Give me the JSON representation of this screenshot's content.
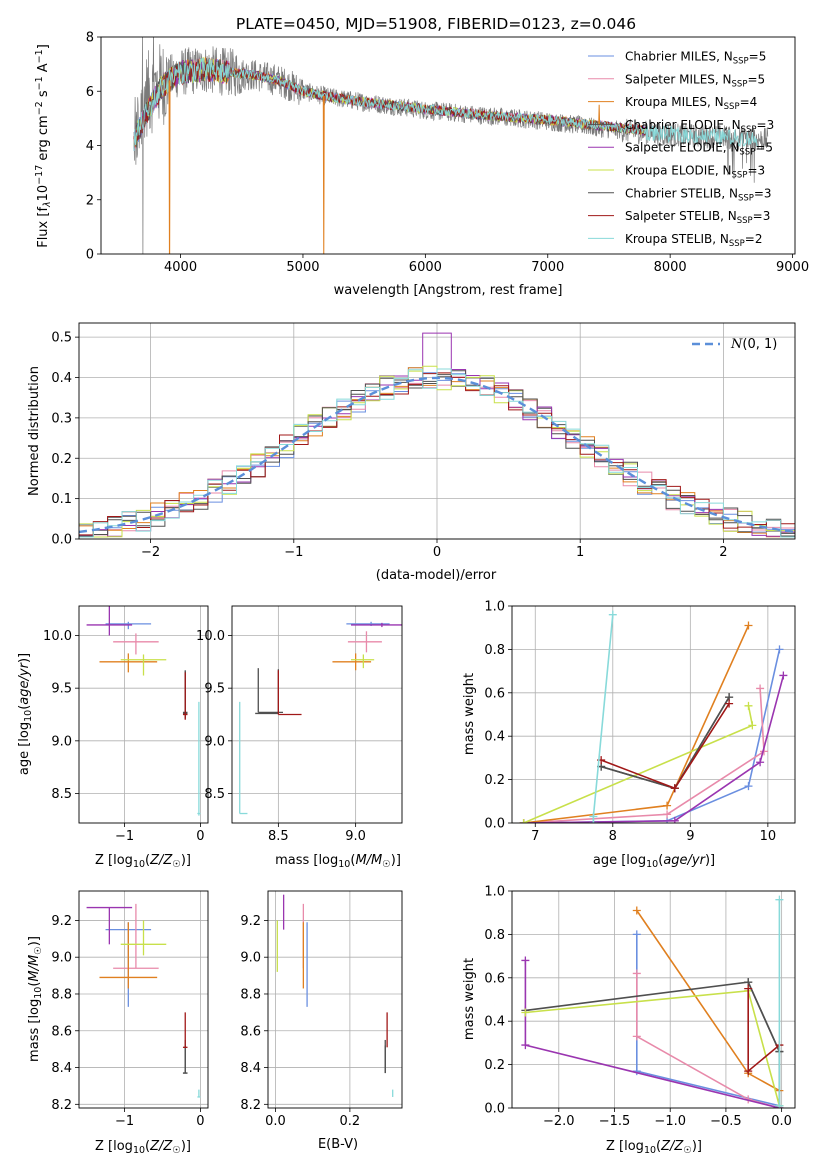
{
  "figure_title": "PLATE=0450, MJD=51908, FIBERID=0123, z=0.046",
  "model_colors": [
    "#6a8fe0",
    "#e88aaa",
    "#e08020",
    "#4f4f4f",
    "#9a35b0",
    "#c8e04a",
    "#505050",
    "#a01818",
    "#88dada"
  ],
  "chart_data": [
    {
      "id": "spectrum",
      "type": "line",
      "xlabel": "wavelength [Angstrom, rest frame]",
      "ylabel": "Flux [f_λ 10^-17 erg cm^-2 s^-1 A^-1]",
      "xlim": [
        3350,
        9020
      ],
      "ylim": [
        0,
        8
      ],
      "xticks": [
        4000,
        5000,
        6000,
        7000,
        8000,
        9000
      ],
      "yticks": [
        0,
        2,
        4,
        6,
        8
      ],
      "legend_position": "top-right",
      "legend": [
        {
          "label": "Chabrier MILES, N_SSP=5",
          "base": "Chabrier MILES, N",
          "sub": "SSP",
          "tail": "=5"
        },
        {
          "label": "Salpeter MILES, N_SSP=5",
          "base": "Salpeter MILES, N",
          "sub": "SSP",
          "tail": "=5"
        },
        {
          "label": "Kroupa MILES, N_SSP=4",
          "base": "Kroupa MILES, N",
          "sub": "SSP",
          "tail": "=4"
        },
        {
          "label": "Chabrier ELODIE, N_SSP=3",
          "base": "Chabrier ELODIE, N",
          "sub": "SSP",
          "tail": "=3"
        },
        {
          "label": "Salpeter ELODIE, N_SSP=5",
          "base": "Salpeter ELODIE, N",
          "sub": "SSP",
          "tail": "=5"
        },
        {
          "label": "Kroupa ELODIE, N_SSP=3",
          "base": "Kroupa ELODIE, N",
          "sub": "SSP",
          "tail": "=3"
        },
        {
          "label": "Chabrier STELIB, N_SSP=3",
          "base": "Chabrier STELIB, N",
          "sub": "SSP",
          "tail": "=3"
        },
        {
          "label": "Salpeter STELIB, N_SSP=3",
          "base": "Salpeter STELIB, N",
          "sub": "SSP",
          "tail": "=3"
        },
        {
          "label": "Kroupa STELIB, N_SSP=2",
          "base": "Kroupa STELIB, N",
          "sub": "SSP",
          "tail": "=2"
        }
      ],
      "observed_continuum": {
        "x": [
          3620,
          3700,
          3850,
          4000,
          4200,
          4400,
          4600,
          4800,
          5000,
          5200,
          5500,
          6000,
          6500,
          7000,
          7500,
          8000,
          8500,
          8800
        ],
        "y": [
          4.0,
          5.8,
          6.3,
          6.7,
          6.8,
          6.7,
          6.6,
          6.4,
          6.0,
          5.8,
          5.6,
          5.3,
          5.1,
          4.9,
          4.6,
          4.4,
          4.3,
          4.2
        ]
      },
      "model_continuum": {
        "x": [
          3620,
          3700,
          3850,
          4000,
          4200,
          4400,
          4600,
          4800,
          5000,
          5200,
          5500,
          6000,
          6500,
          7000,
          7500,
          7800
        ],
        "y": [
          4.2,
          5.0,
          6.2,
          6.7,
          6.8,
          6.7,
          6.6,
          6.4,
          6.0,
          5.8,
          5.6,
          5.35,
          5.1,
          4.95,
          4.7,
          4.55
        ]
      },
      "kroupa_stelib_extends_to": 8720
    },
    {
      "id": "residuals",
      "type": "histogram",
      "xlabel": "(data-model)/error",
      "ylabel": "Normed distribution",
      "xlim": [
        -2.5,
        2.5
      ],
      "ylim": [
        0,
        0.535
      ],
      "xticks": [
        -2,
        -1,
        0,
        1,
        2
      ],
      "yticks": [
        0.0,
        0.1,
        0.2,
        0.3,
        0.4,
        0.5
      ],
      "grid": true,
      "bin_width": 0.1,
      "reference_curve": {
        "label": "N(0,1)",
        "sigma": 1,
        "peak": 0.399
      },
      "legend_position": "top-right"
    },
    {
      "id": "age_vs_Z",
      "type": "errorbar",
      "xlabel": "Z [log10(Z/Z☉)]",
      "ylabel": "age [log10(age/yr)]",
      "xlim": [
        -1.6,
        0.1
      ],
      "ylim": [
        8.22,
        10.28
      ],
      "xticks": [
        -1,
        0
      ],
      "yticks": [
        8.5,
        9.0,
        9.5,
        10.0
      ],
      "grid": true,
      "points": [
        {
          "x": -0.95,
          "xerr": [
            0.3,
            0.3
          ],
          "y": 10.11,
          "yerr": [
            0.05,
            0.02
          ]
        },
        {
          "x": -0.85,
          "xerr": [
            0.3,
            0.3
          ],
          "y": 9.94,
          "yerr": [
            0.12,
            0.08
          ]
        },
        {
          "x": -0.95,
          "xerr": [
            0.38,
            0.38
          ],
          "y": 9.75,
          "yerr": [
            0.1,
            0.08
          ]
        },
        {
          "x": -0.2,
          "xerr": [
            0.03,
            0.03
          ],
          "y": 9.27,
          "yerr": [
            0.05,
            0.4
          ]
        },
        {
          "x": -1.2,
          "xerr": [
            0.3,
            0.3
          ],
          "y": 10.1,
          "yerr": [
            0.1,
            0.18
          ]
        },
        {
          "x": -0.75,
          "xerr": [
            0.3,
            0.3
          ],
          "y": 9.77,
          "yerr": [
            0.15,
            0.05
          ]
        },
        {
          "x": -0.2,
          "xerr": [
            0.03,
            0.03
          ],
          "y": 9.26,
          "yerr": [
            0.05,
            0.4
          ]
        },
        {
          "x": -0.2,
          "xerr": [
            0.03,
            0.03
          ],
          "y": 9.25,
          "yerr": [
            0.05,
            0.4
          ]
        },
        {
          "x": -0.02,
          "xerr": [
            0.02,
            0.02
          ],
          "y": 8.31,
          "yerr": [
            0.02,
            1.06
          ]
        }
      ]
    },
    {
      "id": "age_vs_mass",
      "type": "errorbar",
      "xlabel": "mass [log10(M/M☉)]",
      "ylabel": "",
      "xlim": [
        8.2,
        9.3
      ],
      "ylim": [
        8.22,
        10.28
      ],
      "xticks": [
        8.5,
        9.0
      ],
      "yticks": [
        8.5,
        9.0,
        9.5,
        10.0
      ],
      "grid": true,
      "points": [
        {
          "x": 9.1,
          "xerr": [
            0.16,
            0.12
          ],
          "y": 10.11,
          "yerr": [
            0.02,
            0.02
          ]
        },
        {
          "x": 9.07,
          "xerr": [
            0.12,
            0.1
          ],
          "y": 9.94,
          "yerr": [
            0.1,
            0.1
          ]
        },
        {
          "x": 9.0,
          "xerr": [
            0.15,
            0.1
          ],
          "y": 9.75,
          "yerr": [
            0.08,
            0.08
          ]
        },
        {
          "x": 8.37,
          "xerr": [
            0.0,
            0.16
          ],
          "y": 9.27,
          "yerr": [
            0.0,
            0.42
          ]
        },
        {
          "x": 9.17,
          "xerr": [
            0.2,
            0.13
          ],
          "y": 10.1,
          "yerr": [
            0.02,
            0.02
          ]
        },
        {
          "x": 9.05,
          "xerr": [
            0.08,
            0.07
          ],
          "y": 9.77,
          "yerr": [
            0.08,
            0.05
          ]
        },
        {
          "x": 8.5,
          "xerr": [
            0.15,
            0.0
          ],
          "y": 9.26,
          "yerr": [
            0.0,
            0.42
          ]
        },
        {
          "x": 8.5,
          "xerr": [
            0.0,
            0.15
          ],
          "y": 9.25,
          "yerr": [
            0.0,
            0.42
          ]
        },
        {
          "x": 8.25,
          "xerr": [
            0.0,
            0.05
          ],
          "y": 8.31,
          "yerr": [
            0.0,
            1.06
          ]
        }
      ]
    },
    {
      "id": "weight_vs_age",
      "type": "line",
      "xlabel": "age [log10(age/yr)]",
      "ylabel": "mass weight",
      "xlim": [
        6.7,
        10.35
      ],
      "ylim": [
        0,
        1
      ],
      "xticks": [
        7,
        8,
        9,
        10
      ],
      "yticks": [
        0.0,
        0.2,
        0.4,
        0.6,
        0.8,
        1.0
      ],
      "grid": true,
      "series": [
        {
          "x": [
            6.85,
            8.7,
            9.75,
            10.15
          ],
          "y": [
            0.0,
            0.01,
            0.17,
            0.8
          ]
        },
        {
          "x": [
            6.85,
            8.7,
            9.95,
            9.9
          ],
          "y": [
            0.0,
            0.04,
            0.33,
            0.62
          ]
        },
        {
          "x": [
            6.85,
            8.7,
            9.75
          ],
          "y": [
            0.0,
            0.08,
            0.91
          ]
        },
        {
          "x": [
            7.85,
            8.8,
            9.5
          ],
          "y": [
            0.26,
            0.16,
            0.58
          ]
        },
        {
          "x": [
            6.85,
            8.8,
            9.9,
            10.2
          ],
          "y": [
            0.0,
            0.01,
            0.28,
            0.68
          ]
        },
        {
          "x": [
            6.85,
            9.8,
            9.75
          ],
          "y": [
            0.0,
            0.45,
            0.54
          ]
        },
        {
          "x": [
            7.85,
            8.8,
            9.5
          ],
          "y": [
            0.26,
            0.16,
            0.58
          ]
        },
        {
          "x": [
            7.85,
            8.8,
            9.5
          ],
          "y": [
            0.29,
            0.16,
            0.55
          ]
        },
        {
          "x": [
            7.75,
            7.75,
            8.0
          ],
          "y": [
            0.0,
            0.03,
            0.96
          ]
        }
      ]
    },
    {
      "id": "mass_vs_Z",
      "type": "errorbar",
      "xlabel": "Z [log10(Z/Z☉)]",
      "ylabel": "mass [log10(M/M☉)]",
      "xlim": [
        -1.6,
        0.1
      ],
      "ylim": [
        8.18,
        9.36
      ],
      "xticks": [
        -1,
        0
      ],
      "yticks": [
        8.2,
        8.4,
        8.6,
        8.8,
        9.0,
        9.2
      ],
      "grid": true,
      "points": [
        {
          "x": -0.95,
          "xerr": [
            0.3,
            0.3
          ],
          "y": 9.15,
          "yerr": [
            0.42,
            0.04
          ]
        },
        {
          "x": -0.85,
          "xerr": [
            0.3,
            0.3
          ],
          "y": 8.94,
          "yerr": [
            0.0,
            0.35
          ]
        },
        {
          "x": -0.95,
          "xerr": [
            0.38,
            0.38
          ],
          "y": 8.89,
          "yerr": [
            0.06,
            0.3
          ]
        },
        {
          "x": -0.2,
          "xerr": [
            0.03,
            0.03
          ],
          "y": 8.37,
          "yerr": [
            0.0,
            0.15
          ]
        },
        {
          "x": -1.2,
          "xerr": [
            0.3,
            0.3
          ],
          "y": 9.27,
          "yerr": [
            0.2,
            0.0
          ]
        },
        {
          "x": -0.75,
          "xerr": [
            0.3,
            0.3
          ],
          "y": 9.07,
          "yerr": [
            0.06,
            0.13
          ]
        },
        {
          "x": -0.2,
          "xerr": [
            0.03,
            0.03
          ],
          "y": 8.37,
          "yerr": [
            0.0,
            0.18
          ]
        },
        {
          "x": -0.2,
          "xerr": [
            0.03,
            0.03
          ],
          "y": 8.51,
          "yerr": [
            0.0,
            0.19
          ]
        },
        {
          "x": -0.02,
          "xerr": [
            0.02,
            0.02
          ],
          "y": 8.24,
          "yerr": [
            0.0,
            0.04
          ]
        }
      ]
    },
    {
      "id": "mass_vs_ebv",
      "type": "errorbar",
      "xlabel": "E(B-V)",
      "ylabel": "",
      "xlim": [
        -0.02,
        0.34
      ],
      "ylim": [
        8.18,
        9.36
      ],
      "xticks": [
        0.0,
        0.2
      ],
      "yticks": [
        8.2,
        8.4,
        8.6,
        8.8,
        9.0,
        9.2
      ],
      "grid": true,
      "points": [
        {
          "x": 0.085,
          "xerr": [
            0,
            0
          ],
          "y": 9.15,
          "yerr": [
            0.42,
            0.04
          ]
        },
        {
          "x": 0.075,
          "xerr": [
            0,
            0
          ],
          "y": 8.94,
          "yerr": [
            0.0,
            0.35
          ]
        },
        {
          "x": 0.075,
          "xerr": [
            0,
            0
          ],
          "y": 8.89,
          "yerr": [
            0.06,
            0.3
          ]
        },
        {
          "x": 0.295,
          "xerr": [
            0,
            0
          ],
          "y": 8.37,
          "yerr": [
            0.0,
            0.15
          ]
        },
        {
          "x": 0.022,
          "xerr": [
            0,
            0
          ],
          "y": 9.27,
          "yerr": [
            0.12,
            0.07
          ]
        },
        {
          "x": 0.005,
          "xerr": [
            0,
            0
          ],
          "y": 9.07,
          "yerr": [
            0.15,
            0.13
          ]
        },
        {
          "x": 0.295,
          "xerr": [
            0,
            0
          ],
          "y": 8.37,
          "yerr": [
            0.0,
            0.18
          ]
        },
        {
          "x": 0.3,
          "xerr": [
            0,
            0
          ],
          "y": 8.51,
          "yerr": [
            0.0,
            0.19
          ]
        },
        {
          "x": 0.315,
          "xerr": [
            0,
            0
          ],
          "y": 8.24,
          "yerr": [
            0.0,
            0.04
          ]
        }
      ]
    },
    {
      "id": "weight_vs_Z",
      "type": "line",
      "xlabel": "Z [log10(Z/Z☉)]",
      "ylabel": "mass weight",
      "xlim": [
        -2.42,
        0.12
      ],
      "ylim": [
        0,
        1
      ],
      "xticks": [
        -2.0,
        -1.5,
        -1.0,
        -0.5,
        0.0
      ],
      "yticks": [
        0.0,
        0.2,
        0.4,
        0.6,
        0.8,
        1.0
      ],
      "grid": true,
      "series": [
        {
          "x": [
            -1.3,
            -1.3,
            -0.02
          ],
          "y": [
            0.8,
            0.17,
            0.01
          ]
        },
        {
          "x": [
            -1.3,
            -1.3,
            -0.3,
            -0.02
          ],
          "y": [
            0.62,
            0.33,
            0.04,
            0.0
          ]
        },
        {
          "x": [
            -1.3,
            -0.3,
            -0.02
          ],
          "y": [
            0.91,
            0.16,
            0.08
          ]
        },
        {
          "x": [
            -2.3,
            -0.3,
            -0.02,
            -0.02
          ],
          "y": [
            0.45,
            0.58,
            0.26,
            0.0
          ]
        },
        {
          "x": [
            -2.3,
            -2.3,
            -0.02
          ],
          "y": [
            0.68,
            0.29,
            0.0
          ]
        },
        {
          "x": [
            -2.3,
            -0.3,
            -0.02
          ],
          "y": [
            0.44,
            0.54,
            0.01
          ]
        },
        {
          "x": [
            -0.3,
            -0.02
          ],
          "y": [
            0.58,
            0.26
          ]
        },
        {
          "x": [
            -0.3,
            -0.3,
            -0.02
          ],
          "y": [
            0.55,
            0.17,
            0.29
          ]
        },
        {
          "x": [
            -0.02,
            -0.02
          ],
          "y": [
            0.96,
            0.01
          ]
        }
      ]
    }
  ]
}
